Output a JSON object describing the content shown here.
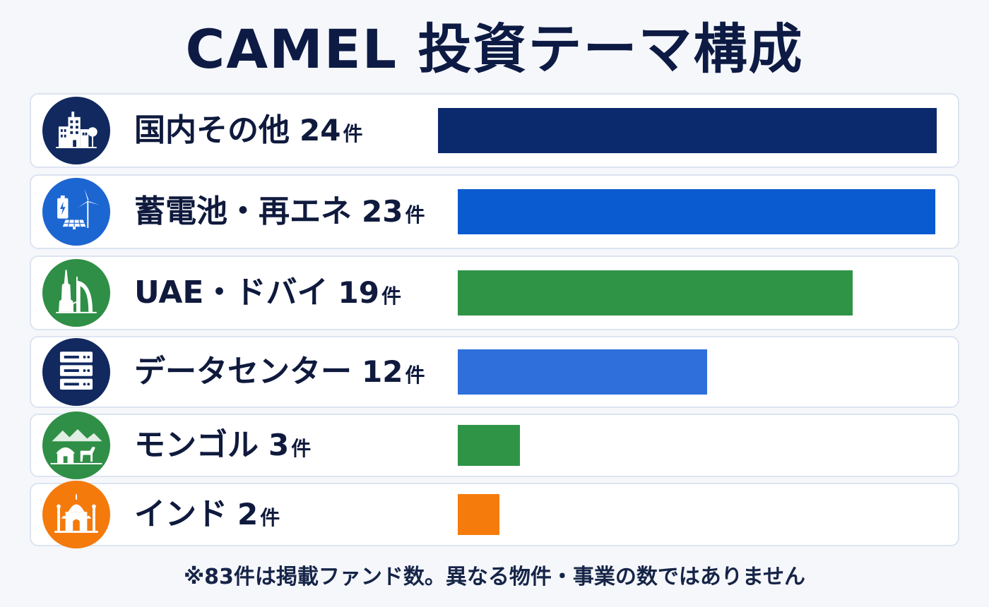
{
  "title": "CAMEL 投資テーマ構成",
  "unit": "件",
  "footnote": "※83件は掲載ファンド数。異なる物件・事業の数ではありません",
  "chart_data": {
    "type": "bar",
    "orientation": "horizontal",
    "title": "CAMEL 投資テーマ構成",
    "categories": [
      "国内その他",
      "蓄電池・再エネ",
      "UAE・ドバイ",
      "データセンター",
      "モンゴル",
      "インド"
    ],
    "values": [
      24,
      23,
      19,
      12,
      3,
      2
    ],
    "value_labels": [
      "24",
      "23",
      "19",
      "12",
      "3",
      "2"
    ],
    "colors": [
      "#0b2a6e",
      "#0a5bd0",
      "#2f9446",
      "#2e6fdb",
      "#2f9446",
      "#f57c0c"
    ],
    "icons": [
      "city-buildings-icon",
      "battery-wind-solar-icon",
      "burj-khalifa-burj-al-arab-icon",
      "server-rack-icon",
      "yurt-horse-mountains-icon",
      "taj-mahal-icon"
    ],
    "icon_colors": [
      "#11295f",
      "#1c66d1",
      "#2f8f46",
      "#11295f",
      "#2f8f46",
      "#f47a0c"
    ]
  }
}
